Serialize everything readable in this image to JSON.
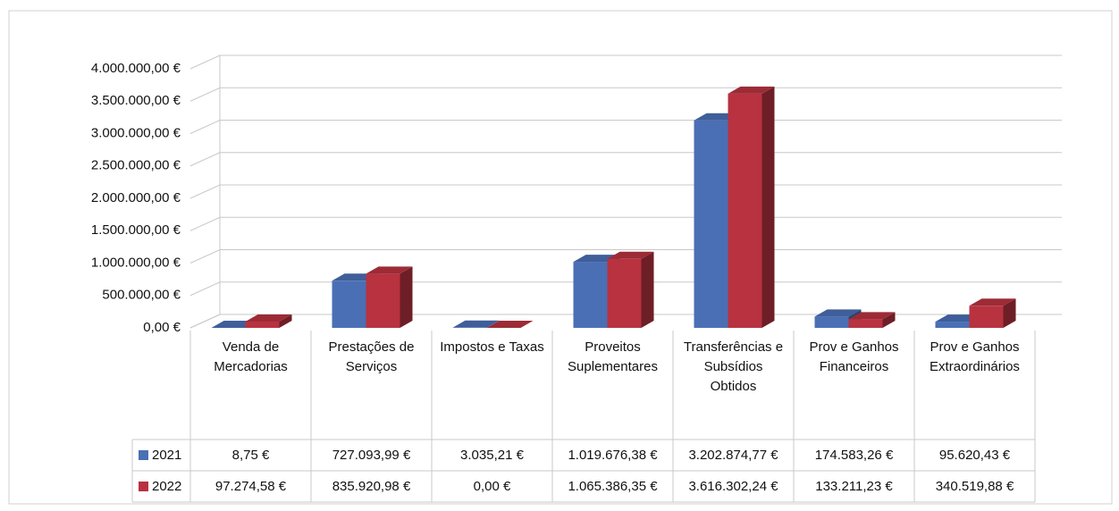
{
  "chart_data": {
    "type": "bar",
    "categories": [
      "Venda de Mercadorias",
      "Prestações de Serviços",
      "Impostos e Taxas",
      "Proveitos Suplementares",
      "Transferências e Subsídios Obtidos",
      "Prov e Ganhos Financeiros",
      "Prov e Ganhos Extraordinários"
    ],
    "series": [
      {
        "name": "2021",
        "color": "#4a6fb5",
        "values": [
          8.75,
          727093.99,
          3035.21,
          1019676.38,
          3202874.77,
          174583.26,
          95620.43
        ],
        "value_labels": [
          "8,75 €",
          "727.093,99 €",
          "3.035,21 €",
          "1.019.676,38 €",
          "3.202.874,77 €",
          "174.583,26 €",
          "95.620,43 €"
        ]
      },
      {
        "name": "2022",
        "color": "#b83240",
        "values": [
          97274.58,
          835920.98,
          0,
          1065386.35,
          3616302.24,
          133211.23,
          340519.88
        ],
        "value_labels": [
          "97.274,58 €",
          "835.920,98 €",
          "0,00 €",
          "1.065.386,35 €",
          "3.616.302,24 €",
          "133.211,23 €",
          "340.519,88 €"
        ]
      }
    ],
    "ylim": [
      0,
      4000000
    ],
    "yticks": [
      {
        "value": 0,
        "label": "0,00 €"
      },
      {
        "value": 500000,
        "label": "500.000,00 €"
      },
      {
        "value": 1000000,
        "label": "1.000.000,00 €"
      },
      {
        "value": 1500000,
        "label": "1.500.000,00 €"
      },
      {
        "value": 2000000,
        "label": "2.000.000,00 €"
      },
      {
        "value": 2500000,
        "label": "2.500.000,00 €"
      },
      {
        "value": 3000000,
        "label": "3.000.000,00 €"
      },
      {
        "value": 3500000,
        "label": "3.500.000,00 €"
      },
      {
        "value": 4000000,
        "label": "4.000.000,00 €"
      }
    ],
    "grid": true,
    "data_table": true
  }
}
